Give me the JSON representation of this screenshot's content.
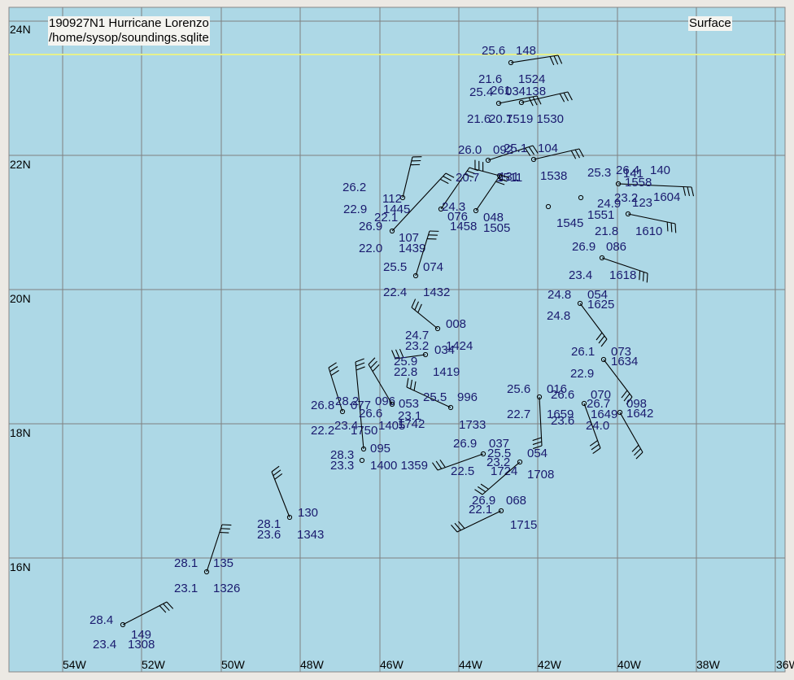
{
  "header": {
    "title": "190927N1 Hurricane Lorenzo",
    "source": "/home/sysop/soundings.sqlite",
    "level": "Surface"
  },
  "map": {
    "lat_labels": [
      "24N",
      "22N",
      "20N",
      "18N",
      "16N"
    ],
    "lon_labels": [
      "54W",
      "52W",
      "50W",
      "48W",
      "46W",
      "44W",
      "42W",
      "40W",
      "38W",
      "36W"
    ],
    "colors": {
      "ocean": "#add8e6",
      "grid": "#808080",
      "highlight_line": "#e6f08c",
      "text": "#1a1a6e"
    }
  },
  "observations": [
    {
      "t": "25.6",
      "td": "",
      "p": "148",
      "tm": ""
    },
    {
      "t": "21.6",
      "td": "",
      "p": "1524",
      "tm": ""
    },
    {
      "t": "25.4",
      "td": "",
      "p": "261",
      "tm": "034138"
    },
    {
      "t": "21.6",
      "td": "20.7",
      "p": "",
      "tm": "1519 1530"
    },
    {
      "t": "26.0",
      "td": "",
      "p": "092",
      "tm": ""
    },
    {
      "t": "25.1",
      "td": "",
      "p": "104",
      "tm": ""
    },
    {
      "t": "26.4",
      "td": "",
      "p": "141",
      "tm": "140"
    },
    {
      "t": "25.3",
      "td": "",
      "p": "",
      "tm": "1558"
    },
    {
      "t": "23.2",
      "td": "",
      "p": "123",
      "tm": "1604"
    },
    {
      "t": "24.9",
      "td": "",
      "p": "",
      "tm": "1551"
    },
    {
      "t": "21.8",
      "td": "",
      "p": "",
      "tm": "1610"
    },
    {
      "t": "26.9",
      "td": "",
      "p": "086",
      "tm": ""
    },
    {
      "t": "23.4",
      "td": "",
      "p": "",
      "tm": "1618"
    },
    {
      "t": "24.8",
      "td": "24.8",
      "p": "054",
      "tm": "1625"
    },
    {
      "t": "26.1",
      "td": "22.9",
      "p": "073",
      "tm": "1634"
    },
    {
      "t": "26.7",
      "td": "24.0",
      "p": "098",
      "tm": "1642"
    },
    {
      "t": "26.6",
      "td": "23.6",
      "p": "070",
      "tm": "1649"
    },
    {
      "t": "25.6",
      "td": "22.7",
      "p": "016",
      "tm": "1659"
    },
    {
      "t": "26.9",
      "td": "22.5",
      "p": "037",
      "tm": "1724"
    },
    {
      "t": "25.5",
      "td": "23.2",
      "p": "054",
      "tm": "1708"
    },
    {
      "t": "26.9",
      "td": "22.1",
      "p": "068",
      "tm": "1715"
    },
    {
      "t": "28.1",
      "td": "23.6",
      "p": "130",
      "tm": "1343"
    },
    {
      "t": "28.1",
      "td": "23.1",
      "p": "135",
      "tm": "1326"
    },
    {
      "t": "28.4",
      "td": "23.4",
      "p": "149",
      "tm": "1308"
    },
    {
      "t": "26.2",
      "td": "22.9",
      "p": "112",
      "tm": "1445"
    },
    {
      "t": "26.9",
      "td": "22.0",
      "p": "107",
      "tm": "1439"
    },
    {
      "t": "25.5",
      "td": "22.4",
      "p": "074",
      "tm": "1432"
    },
    {
      "t": "24.3",
      "td": "22.1",
      "p": "076",
      "tm": "1458"
    },
    {
      "t": "20.7",
      "td": "",
      "p": "131",
      "tm": "1511"
    },
    {
      "t": "",
      "td": "",
      "p": "048",
      "tm": "1505"
    },
    {
      "t": "",
      "td": "",
      "p": "",
      "tm": "1538"
    },
    {
      "t": "",
      "td": "",
      "p": "",
      "tm": "1545"
    },
    {
      "t": "24.7",
      "td": "23.2",
      "p": "008",
      "tm": "1424"
    },
    {
      "t": "25.9",
      "td": "22.8",
      "p": "034",
      "tm": "1419"
    },
    {
      "t": "25.5",
      "td": "23.1",
      "p": "996",
      "tm": "1733"
    },
    {
      "t": "26.8",
      "td": "22.2",
      "p": "077",
      "tm": "1750"
    },
    {
      "t": "28.2",
      "td": "23.4",
      "p": "096",
      "tm": "1405"
    },
    {
      "t": "26.6",
      "td": "",
      "p": "053",
      "tm": "1742"
    },
    {
      "t": "28.3",
      "td": "23.3",
      "p": "095",
      "tm": "1400 1359"
    }
  ]
}
